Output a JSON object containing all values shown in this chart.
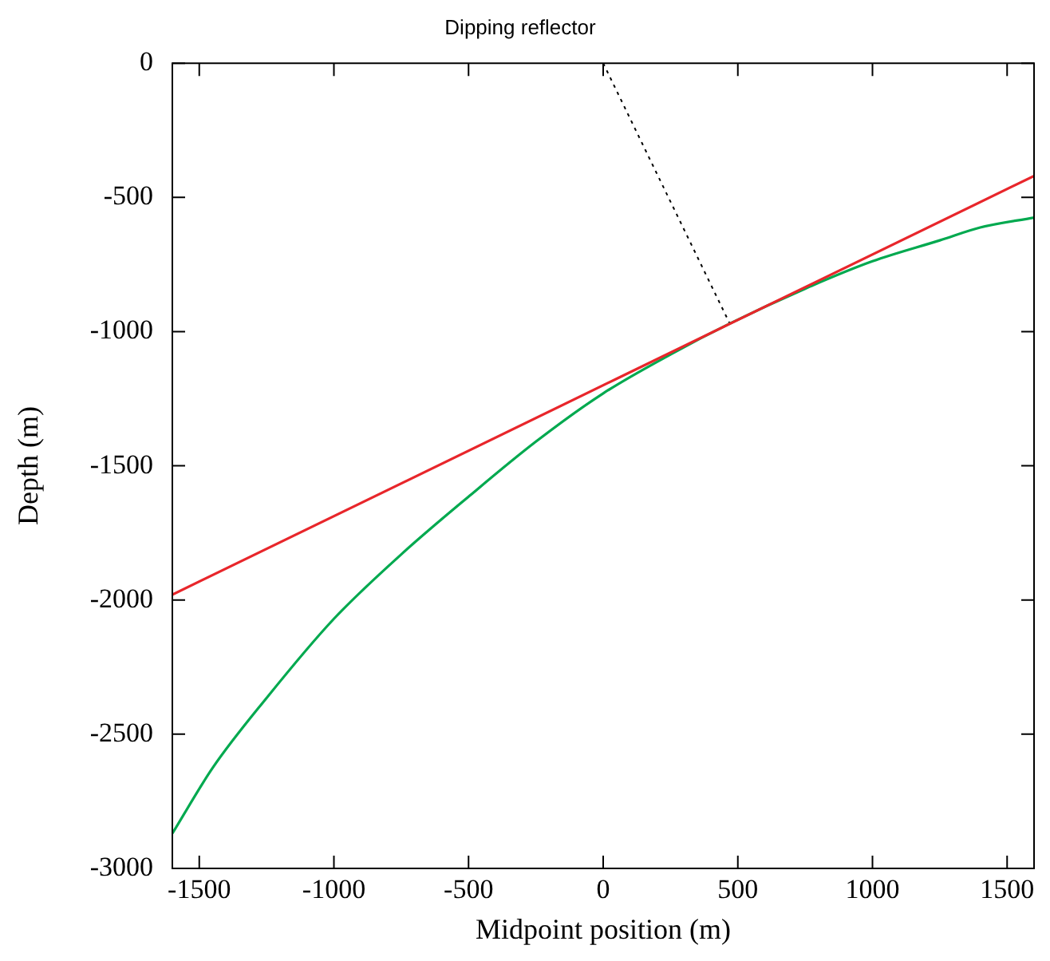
{
  "chart_data": {
    "type": "line",
    "title": "Dipping reflector",
    "xlabel": "Midpoint position (m)",
    "ylabel": "Depth (m)",
    "xlim": [
      -1600,
      1600
    ],
    "xticks": [
      -1500,
      -1000,
      -500,
      0,
      500,
      1000,
      1500
    ],
    "ylim": [
      -3000,
      0
    ],
    "yticks": [
      -3000,
      -2500,
      -2000,
      -1500,
      -1000,
      -500,
      0
    ],
    "marker": "none",
    "series": [
      {
        "color": "#e8262b",
        "line_style": "solid",
        "x": [
          -1600,
          1600
        ],
        "values": [
          -1980,
          -420
        ]
      },
      {
        "color": "#00a94f",
        "line_style": "solid",
        "x": [
          -1600,
          -1450,
          -1250,
          -1000,
          -750,
          -500,
          -250,
          0,
          250,
          470,
          750,
          1000,
          1250,
          1400,
          1600
        ],
        "values": [
          -2870,
          -2625,
          -2365,
          -2070,
          -1830,
          -1615,
          -1410,
          -1230,
          -1085,
          -970,
          -840,
          -738,
          -660,
          -612,
          -575
        ]
      },
      {
        "color": "#000000",
        "line_style": "dotted",
        "x": [
          0,
          470
        ],
        "values": [
          0,
          -970
        ]
      }
    ]
  }
}
